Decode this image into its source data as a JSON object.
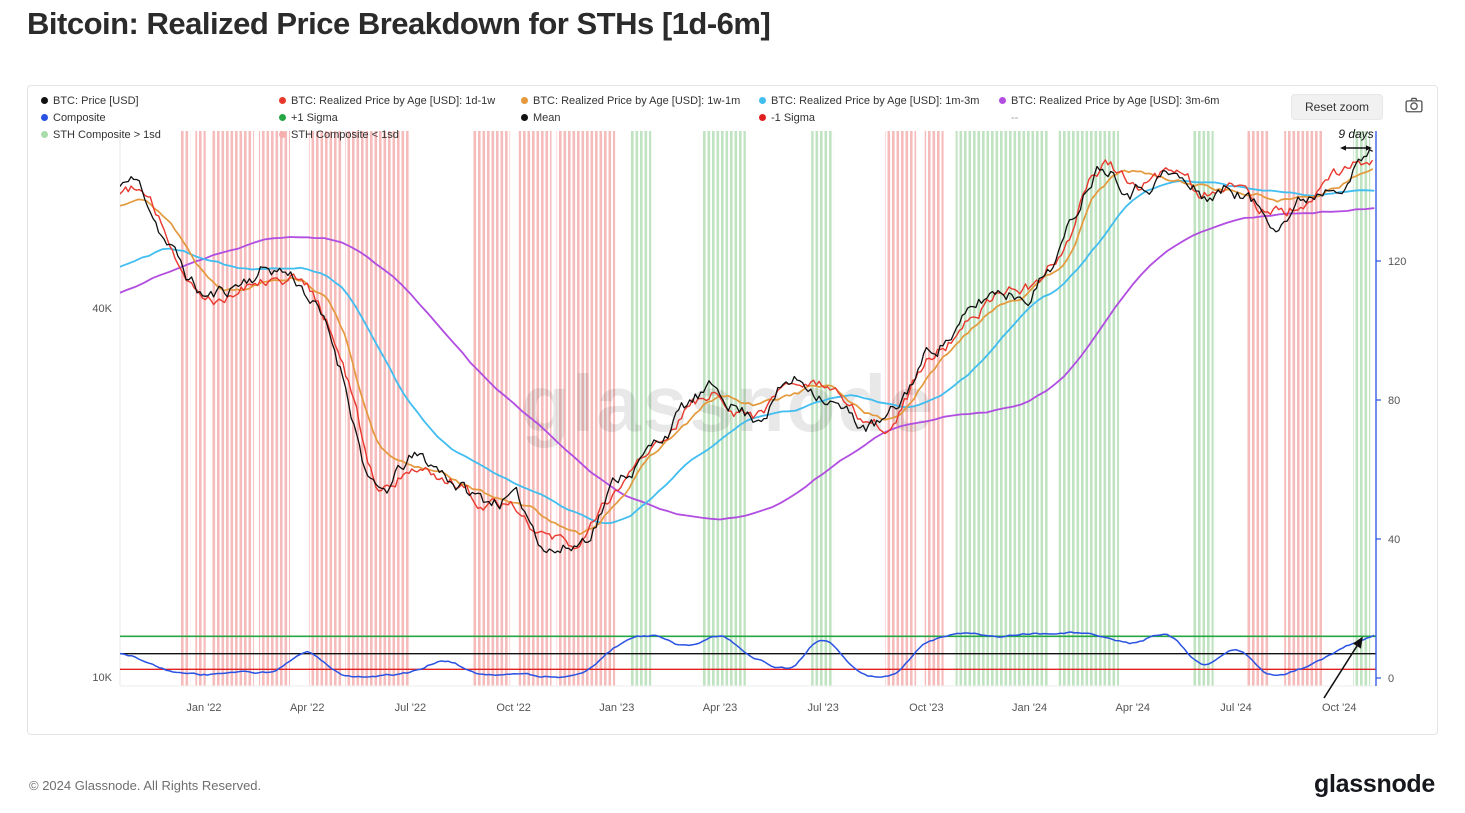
{
  "page": {
    "title": "Bitcoin: Realized Price Breakdown for STHs [1d-6m]",
    "footer_copyright": "© 2024 Glassnode. All Rights Reserved.",
    "brand": "glassnode",
    "watermark": "glassnode"
  },
  "toolbar": {
    "reset_zoom_label": "Reset zoom",
    "camera_icon": "camera-icon"
  },
  "legend": {
    "rows": [
      [
        {
          "label": "BTC: Price [USD]",
          "color": "#111111"
        },
        {
          "label": "BTC: Realized Price by Age [USD]: 1d-1w",
          "color": "#e8382d"
        },
        {
          "label": "BTC: Realized Price by Age [USD]: 1w-1m",
          "color": "#e3993c"
        },
        {
          "label": "BTC: Realized Price by Age [USD]: 1m-3m",
          "color": "#41bdf0"
        },
        {
          "label": "BTC: Realized Price by Age [USD]: 3m-6m",
          "color": "#b14de0"
        }
      ],
      [
        {
          "label": "Composite",
          "color": "#2952e3"
        },
        {
          "label": "+1 Sigma",
          "color": "#27a744"
        },
        {
          "label": "Mean",
          "color": "#111111"
        },
        {
          "label": "-1 Sigma",
          "color": "#e02020"
        },
        {
          "label": "--",
          "color": null
        }
      ],
      [
        {
          "label": "STH Composite > 1sd",
          "color": "#a8dcab"
        },
        {
          "label": "STH Composite < 1sd",
          "color": "#f5b0ae"
        }
      ]
    ]
  },
  "chart_data": {
    "type": "line",
    "title": "Bitcoin: Realized Price Breakdown for STHs [1d-6m]",
    "x_axis": {
      "tick_labels": [
        "Jan '22",
        "Apr '22",
        "Jul '22",
        "Oct '22",
        "Jan '23",
        "Apr '23",
        "Jul '23",
        "Oct '23",
        "Jan '24",
        "Apr '24",
        "Jul '24",
        "Oct '24"
      ],
      "tick_months": [
        3,
        6,
        9,
        12,
        15,
        18,
        21,
        24,
        27,
        30,
        33,
        36
      ]
    },
    "y_axis_left": {
      "scale": "log",
      "ticks": [
        {
          "label": "40K",
          "value": 40000
        },
        {
          "label": "10K",
          "value": 10000
        }
      ]
    },
    "y_axis_right": {
      "color": "#2952e3",
      "ticks": [
        {
          "label": "120",
          "value": 120
        },
        {
          "label": "80",
          "value": 80
        },
        {
          "label": "40",
          "value": 40
        },
        {
          "label": "0",
          "value": 0
        }
      ]
    },
    "series": [
      {
        "name": "BTC: Price [USD]",
        "color": "#111111",
        "axis": "left",
        "values": [
          60000,
          64000,
          50500,
          42000,
          44000,
          46500,
          42500,
          31500,
          20000,
          22500,
          21500,
          19500,
          19400,
          16500,
          16800,
          21000,
          23500,
          27500,
          29000,
          26800,
          30200,
          29300,
          26000,
          26500,
          33500,
          37500,
          42500,
          43000,
          51500,
          69000,
          64000,
          66500,
          61000,
          62500,
          56500,
          60500,
          66000,
          71500
        ]
      },
      {
        "name": "BTC: Realized Price by Age [USD]: 1d-1w",
        "color": "#e8382d",
        "axis": "left",
        "values": [
          59000,
          62500,
          51500,
          42500,
          43500,
          45800,
          43000,
          33000,
          20800,
          22200,
          21300,
          19600,
          19400,
          17000,
          16900,
          20500,
          23200,
          27000,
          28800,
          27000,
          29800,
          29400,
          26300,
          26500,
          32800,
          37000,
          42200,
          43000,
          50500,
          67500,
          64500,
          66000,
          61500,
          62500,
          57500,
          60000,
          65500,
          70000
        ]
      },
      {
        "name": "BTC: Realized Price by Age [USD]: 1w-1m",
        "color": "#e3993c",
        "axis": "left",
        "values": [
          58000,
          61000,
          55500,
          46000,
          43200,
          45200,
          44500,
          37500,
          24500,
          21800,
          21500,
          20000,
          19400,
          18200,
          17000,
          19500,
          22800,
          25800,
          28500,
          27600,
          28800,
          29800,
          27600,
          26400,
          30500,
          35500,
          40500,
          42800,
          47500,
          62000,
          66500,
          64500,
          63500,
          62000,
          60500,
          60500,
          64000,
          67500
        ]
      },
      {
        "name": "BTC: Realized Price by Age [USD]: 1m-3m",
        "color": "#41bdf0",
        "axis": "left",
        "values": [
          45500,
          48000,
          50000,
          48500,
          46800,
          46200,
          46500,
          43500,
          35000,
          28000,
          24200,
          22500,
          20800,
          19600,
          18300,
          17900,
          19500,
          22000,
          24200,
          26500,
          27200,
          28200,
          28600,
          27600,
          27900,
          30500,
          34500,
          40000,
          43500,
          51000,
          59500,
          63500,
          63500,
          62500,
          61500,
          61000,
          61800,
          62800
        ]
      },
      {
        "name": "BTC: Realized Price by Age [USD]: 3m-6m",
        "color": "#b14de0",
        "axis": "left",
        "values": [
          41500,
          43500,
          46000,
          48500,
          50500,
          52000,
          52500,
          51500,
          47500,
          42500,
          36500,
          31500,
          28000,
          25000,
          22200,
          20200,
          19000,
          18300,
          18000,
          18400,
          19400,
          21400,
          23400,
          25400,
          26400,
          27000,
          27400,
          28400,
          31000,
          36500,
          43500,
          49500,
          53500,
          55500,
          56500,
          57200,
          57800,
          58500
        ]
      },
      {
        "name": "Composite",
        "color": "#2952e3",
        "axis": "right",
        "values": [
          8,
          6,
          2,
          1,
          1.5,
          2,
          7.5,
          1,
          0.5,
          1.5,
          5,
          1,
          1.5,
          0.5,
          1,
          9,
          12,
          9,
          12,
          6,
          3,
          11,
          2,
          1,
          10,
          12.5,
          12,
          12.5,
          13,
          12.5,
          10,
          12.5,
          4,
          8,
          1,
          3,
          8,
          12
        ]
      }
    ],
    "reference_lines": [
      {
        "name": "+1 Sigma",
        "color": "#27a744",
        "value": 12,
        "axis": "right"
      },
      {
        "name": "Mean",
        "color": "#111111",
        "value": 7,
        "axis": "right"
      },
      {
        "name": "-1 Sigma",
        "color": "#e02020",
        "value": 2.5,
        "axis": "right"
      }
    ],
    "bands": {
      "green": {
        "label": "STH Composite > 1sd",
        "color": "#b9e0ba",
        "ranges": [
          [
            15.4,
            16.0
          ],
          [
            17.45,
            18.75
          ],
          [
            20.65,
            21.3
          ],
          [
            24.85,
            27.55
          ],
          [
            27.85,
            29.6
          ],
          [
            31.75,
            32.35
          ],
          [
            36.4,
            36.9
          ]
        ]
      },
      "pink": {
        "label": "STH Composite < 1sd",
        "color": "#f5b5b3",
        "ranges": [
          [
            2.3,
            2.6
          ],
          [
            2.75,
            3.05
          ],
          [
            3.2,
            4.45
          ],
          [
            4.6,
            5.5
          ],
          [
            6.05,
            7.0
          ],
          [
            7.1,
            9.0
          ],
          [
            10.8,
            11.9
          ],
          [
            12.15,
            13.1
          ],
          [
            13.25,
            14.95
          ],
          [
            22.8,
            23.7
          ],
          [
            23.95,
            24.5
          ],
          [
            33.3,
            33.95
          ],
          [
            34.4,
            35.5
          ]
        ]
      }
    },
    "annotations": {
      "range_label": "9 days",
      "trend_arrow": true
    }
  }
}
